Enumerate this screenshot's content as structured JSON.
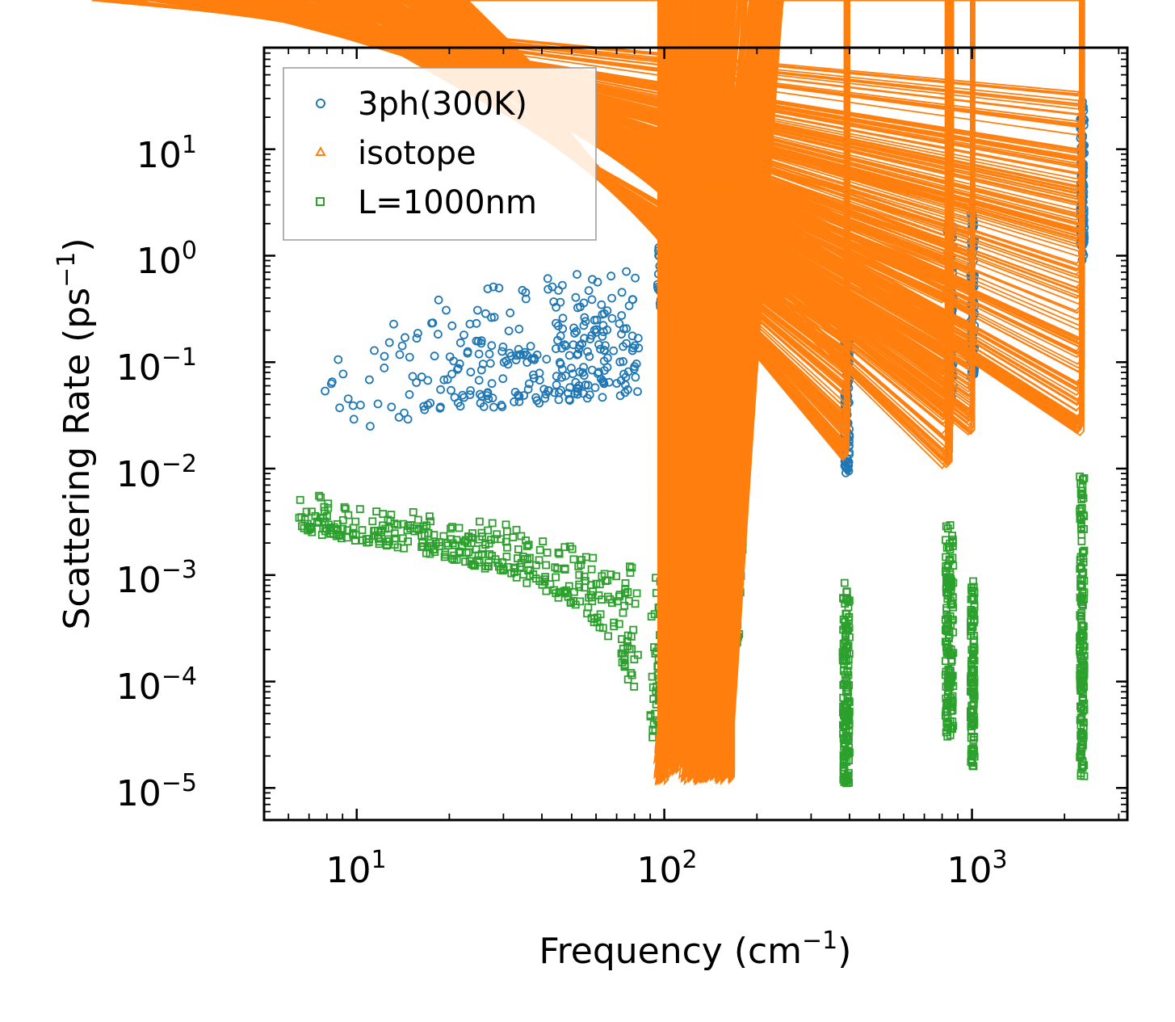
{
  "chart_data": {
    "type": "scatter",
    "title": "",
    "xlabel": "Frequency (cm",
    "xlabel_sup": "−1",
    "xlabel_tail": ")",
    "ylabel": "Scattering Rate (ps",
    "ylabel_sup": "−1",
    "ylabel_tail": ")",
    "xscale": "log",
    "yscale": "log",
    "xlim": [
      5,
      3200
    ],
    "ylim": [
      5e-06,
      90
    ],
    "x_ticks": [
      {
        "value": 10,
        "base": "10",
        "exp": "1"
      },
      {
        "value": 100,
        "base": "10",
        "exp": "2"
      },
      {
        "value": 1000,
        "base": "10",
        "exp": "3"
      }
    ],
    "y_ticks": [
      {
        "value": 1e-05,
        "base": "10",
        "exp": "−5"
      },
      {
        "value": 0.0001,
        "base": "10",
        "exp": "−4"
      },
      {
        "value": 0.001,
        "base": "10",
        "exp": "−3"
      },
      {
        "value": 0.01,
        "base": "10",
        "exp": "−2"
      },
      {
        "value": 0.1,
        "base": "10",
        "exp": "−1"
      },
      {
        "value": 1,
        "base": "10",
        "exp": "0"
      },
      {
        "value": 10,
        "base": "10",
        "exp": "1"
      }
    ],
    "grid": false,
    "legend_position": "top-left",
    "series": [
      {
        "name": "3ph(300K)",
        "marker": "circle",
        "color": "#1f77b4",
        "clusters": [
          {
            "x_range": [
              6.5,
              83
            ],
            "y_low": [
              0.018,
              0.05
            ],
            "y_high": [
              0.12,
              0.9
            ],
            "trend": "rising",
            "count": 300
          },
          {
            "x_range": [
              95,
              180
            ],
            "y_low": [
              0.3,
              0.5
            ],
            "y_high": [
              1.5,
              3.5
            ],
            "trend": "dip",
            "count": 260
          },
          {
            "x_range": [
              385,
              400
            ],
            "y_low": [
              0.009,
              0.009
            ],
            "y_high": [
              0.4,
              0.4
            ],
            "trend": "column",
            "count": 120
          },
          {
            "x_range": [
              830,
              870
            ],
            "y_low": [
              0.04,
              0.04
            ],
            "y_high": [
              2.0,
              2.0
            ],
            "trend": "column",
            "count": 120
          },
          {
            "x_range": [
              990,
              1020
            ],
            "y_low": [
              0.07,
              0.07
            ],
            "y_high": [
              2.5,
              2.5
            ],
            "trend": "column",
            "count": 100
          },
          {
            "x_range": [
              2250,
              2320
            ],
            "y_low": [
              0.9,
              0.9
            ],
            "y_high": [
              32,
              32
            ],
            "trend": "column",
            "count": 120
          }
        ]
      },
      {
        "name": "isotope",
        "marker": "triangle",
        "color": "#ff7f0e",
        "clusters": [
          {
            "x_range": [
              95,
              170
            ],
            "y_low": [
              1.1e-05,
              1.1e-05
            ],
            "y_high": [
              2.5e-05,
              0.0001
            ],
            "trend": "peak",
            "count": 280
          },
          {
            "x_range": [
              385,
              400
            ],
            "y_low": [
              0.012,
              0.012
            ],
            "y_high": [
              0.35,
              0.35
            ],
            "trend": "column",
            "count": 140
          },
          {
            "x_range": [
              820,
              870
            ],
            "y_low": [
              0.01,
              0.01
            ],
            "y_high": [
              2.3,
              2.3
            ],
            "trend": "column",
            "count": 160
          },
          {
            "x_range": [
              990,
              1020
            ],
            "y_low": [
              0.02,
              0.02
            ],
            "y_high": [
              3.5,
              3.5
            ],
            "trend": "column",
            "count": 120
          },
          {
            "x_range": [
              2240,
              2320
            ],
            "y_low": [
              0.02,
              0.02
            ],
            "y_high": [
              40,
              40
            ],
            "trend": "column",
            "count": 170
          }
        ]
      },
      {
        "name": "L=1000nm",
        "marker": "square",
        "color": "#2ca02c",
        "clusters": [
          {
            "x_range": [
              6.5,
              83
            ],
            "y_low": [
              0.0025,
              2e-05
            ],
            "y_high": [
              0.006,
              0.0012
            ],
            "trend": "falling",
            "count": 360
          },
          {
            "x_range": [
              90,
              180
            ],
            "y_low": [
              2e-05,
              0.0002
            ],
            "y_high": [
              0.001,
              0.006
            ],
            "trend": "rising",
            "count": 300
          },
          {
            "x_range": [
              380,
              400
            ],
            "y_low": [
              1.1e-05,
              1.1e-05
            ],
            "y_high": [
              0.0009,
              0.0009
            ],
            "trend": "column",
            "count": 160
          },
          {
            "x_range": [
              820,
              870
            ],
            "y_low": [
              3e-05,
              3e-05
            ],
            "y_high": [
              0.003,
              0.003
            ],
            "trend": "column",
            "count": 160
          },
          {
            "x_range": [
              990,
              1020
            ],
            "y_low": [
              1.6e-05,
              1.6e-05
            ],
            "y_high": [
              0.001,
              0.001
            ],
            "trend": "column",
            "count": 120
          },
          {
            "x_range": [
              2240,
              2320
            ],
            "y_low": [
              1.2e-05,
              1.2e-05
            ],
            "y_high": [
              0.009,
              0.009
            ],
            "trend": "column",
            "count": 160
          }
        ]
      }
    ]
  }
}
